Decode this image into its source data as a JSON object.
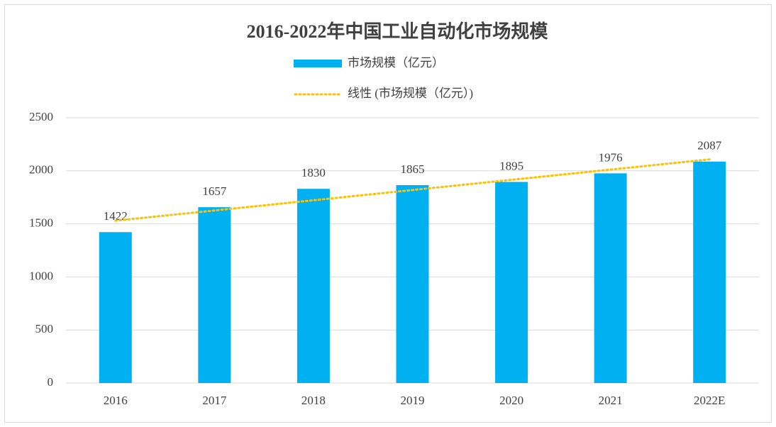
{
  "chart_data": {
    "type": "bar",
    "title": "2016-2022年中国工业自动化市场规模",
    "categories": [
      "2016",
      "2017",
      "2018",
      "2019",
      "2020",
      "2021",
      "2022E"
    ],
    "series": [
      {
        "name": "市场规模（亿元）",
        "color": "#00b0f0",
        "values": [
          1422,
          1657,
          1830,
          1865,
          1895,
          1976,
          2087
        ]
      }
    ],
    "trendline": {
      "type": "linear",
      "name": "线性 (市场规模（亿元）)",
      "color": "#ffc000"
    },
    "ylim": [
      0,
      2500
    ],
    "yticks": [
      0,
      500,
      1000,
      1500,
      2000,
      2500
    ],
    "grid": true,
    "legend": "top"
  }
}
